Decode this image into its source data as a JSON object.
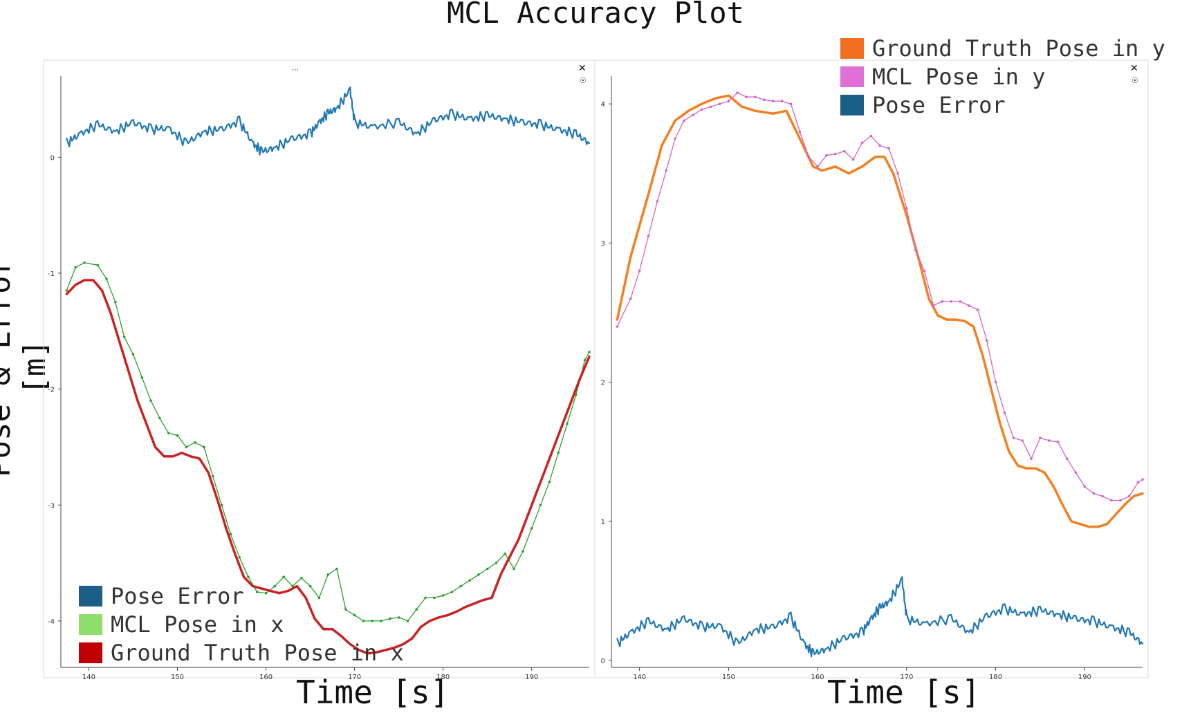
{
  "title": "MCL Accuracy Plot",
  "ylabel": "Pose & Error [m]",
  "colors": {
    "pose_error": "#1f77b4",
    "pose_error_legend": "#1b5f86",
    "mcl_x": "#2ca02c",
    "mcl_x_legend": "#8ede6e",
    "gt_x": "#c92222",
    "gt_x_legend": "#c00000",
    "gt_y": "#f57f20",
    "gt_y_legend": "#f07020",
    "mcl_y": "#d463c8",
    "mcl_y_legend": "#e070d8"
  },
  "icons": {
    "close": "close-icon",
    "settings": "gear-icon",
    "menu": "ellipsis-icon"
  },
  "chart_data": [
    {
      "type": "line",
      "xlabel": "Time [s]",
      "xlim": [
        137,
        196.5
      ],
      "ylim": [
        -4.4,
        0.7
      ],
      "xticks": [
        140,
        150,
        160,
        170,
        180,
        190
      ],
      "yticks": [
        0,
        -1,
        -2,
        -3,
        -4
      ],
      "legend_position": "bottom-left",
      "legend": [
        {
          "label": "Pose Error",
          "color_key": "pose_error_legend"
        },
        {
          "label": "MCL Pose in x",
          "color_key": "mcl_x_legend"
        },
        {
          "label": "Ground Truth Pose in x",
          "color_key": "gt_x_legend"
        }
      ],
      "series": [
        {
          "name": "Pose Error",
          "color_key": "pose_error",
          "style": "jagged",
          "x": [
            137.5,
            139,
            141,
            143,
            145,
            147,
            149,
            151,
            153,
            155,
            157,
            158.5,
            159.5,
            161,
            163,
            165,
            166,
            167,
            168,
            169.5,
            170,
            172,
            175,
            177,
            179,
            181,
            183,
            185,
            187,
            189,
            191,
            193,
            195,
            196.5
          ],
          "y": [
            0.12,
            0.2,
            0.28,
            0.22,
            0.3,
            0.24,
            0.25,
            0.12,
            0.22,
            0.24,
            0.31,
            0.12,
            0.05,
            0.08,
            0.16,
            0.2,
            0.3,
            0.38,
            0.42,
            0.58,
            0.3,
            0.26,
            0.3,
            0.2,
            0.32,
            0.37,
            0.33,
            0.36,
            0.33,
            0.3,
            0.28,
            0.24,
            0.2,
            0.12
          ]
        },
        {
          "name": "MCL Pose in x",
          "color_key": "mcl_x",
          "style": "dotted",
          "x": [
            137.5,
            138.5,
            139.5,
            141,
            142,
            143,
            144,
            145,
            146,
            147,
            148,
            149,
            150,
            151,
            152,
            153,
            154,
            155,
            156,
            157,
            158,
            159,
            160,
            161,
            162,
            163,
            164,
            165,
            166,
            167,
            168,
            169,
            170,
            171,
            172,
            173,
            174,
            175,
            176,
            177,
            178,
            179,
            180,
            181,
            182,
            183,
            184,
            185,
            186,
            187,
            188,
            189,
            190,
            191,
            192,
            193,
            194,
            195,
            196,
            196.5
          ],
          "y": [
            -1.15,
            -0.95,
            -0.91,
            -0.93,
            -1.05,
            -1.25,
            -1.55,
            -1.7,
            -1.9,
            -2.1,
            -2.25,
            -2.38,
            -2.4,
            -2.5,
            -2.46,
            -2.5,
            -2.75,
            -3.0,
            -3.25,
            -3.45,
            -3.62,
            -3.75,
            -3.76,
            -3.7,
            -3.62,
            -3.7,
            -3.63,
            -3.7,
            -3.8,
            -3.6,
            -3.55,
            -3.9,
            -3.95,
            -4.0,
            -4.0,
            -4.0,
            -3.98,
            -3.97,
            -4.0,
            -3.9,
            -3.8,
            -3.8,
            -3.78,
            -3.75,
            -3.7,
            -3.65,
            -3.6,
            -3.55,
            -3.5,
            -3.42,
            -3.55,
            -3.4,
            -3.2,
            -3.0,
            -2.8,
            -2.55,
            -2.3,
            -2.05,
            -1.75,
            -1.68
          ]
        },
        {
          "name": "Ground Truth Pose in x",
          "color_key": "gt_x",
          "style": "thick",
          "x": [
            137.5,
            138.5,
            139.5,
            140.5,
            141.5,
            142.5,
            143.5,
            144.5,
            145.5,
            146.5,
            147.5,
            148.5,
            149.5,
            150.5,
            151.5,
            152.5,
            153.5,
            154.5,
            155.5,
            156.5,
            157.5,
            158.5,
            159.5,
            160.5,
            161.5,
            162.5,
            163.5,
            164.5,
            165.5,
            166.5,
            167.5,
            168.5,
            169.5,
            170.5,
            171.5,
            172.5,
            173.5,
            174.5,
            175.5,
            176.5,
            177.5,
            178.5,
            179.5,
            180.5,
            181.5,
            182.5,
            183.5,
            184.5,
            185.5,
            186.5,
            187.5,
            188.5,
            189.5,
            190.5,
            191.5,
            192.5,
            193.5,
            194.5,
            195.5,
            196.5
          ],
          "y": [
            -1.18,
            -1.1,
            -1.06,
            -1.06,
            -1.15,
            -1.35,
            -1.6,
            -1.85,
            -2.1,
            -2.3,
            -2.5,
            -2.58,
            -2.58,
            -2.55,
            -2.58,
            -2.6,
            -2.72,
            -2.95,
            -3.2,
            -3.42,
            -3.62,
            -3.7,
            -3.72,
            -3.74,
            -3.76,
            -3.74,
            -3.7,
            -3.8,
            -3.98,
            -4.07,
            -4.07,
            -4.13,
            -4.2,
            -4.25,
            -4.28,
            -4.27,
            -4.25,
            -4.23,
            -4.2,
            -4.15,
            -4.05,
            -4.0,
            -3.97,
            -3.95,
            -3.92,
            -3.88,
            -3.85,
            -3.82,
            -3.8,
            -3.6,
            -3.45,
            -3.3,
            -3.1,
            -2.9,
            -2.7,
            -2.5,
            -2.3,
            -2.1,
            -1.9,
            -1.72
          ]
        }
      ]
    },
    {
      "type": "line",
      "xlabel": "Time [s]",
      "xlim": [
        137,
        196.5
      ],
      "ylim": [
        -0.05,
        4.2
      ],
      "xticks": [
        140,
        150,
        160,
        170,
        180,
        190
      ],
      "yticks": [
        0,
        1,
        2,
        3,
        4
      ],
      "legend_position": "top-right",
      "legend": [
        {
          "label": "Ground Truth Pose in y",
          "color_key": "gt_y_legend"
        },
        {
          "label": "MCL Pose in y",
          "color_key": "mcl_y_legend"
        },
        {
          "label": "Pose Error",
          "color_key": "pose_error_legend"
        }
      ],
      "series": [
        {
          "name": "Ground Truth Pose in y",
          "color_key": "gt_y",
          "style": "thick",
          "x": [
            137.5,
            139,
            141,
            142.5,
            144,
            145.5,
            147,
            148.5,
            150,
            151.5,
            153,
            155,
            156.5,
            158,
            159.5,
            160.5,
            162,
            163.5,
            165,
            166.5,
            167.5,
            168.5,
            170,
            171.5,
            172.5,
            173.5,
            174.5,
            175.5,
            176.5,
            177.5,
            178.5,
            179.5,
            180.5,
            181.5,
            182.5,
            183.5,
            184.5,
            185.5,
            186.5,
            187.5,
            188.5,
            189.5,
            190.5,
            191.5,
            192.5,
            193.5,
            194.5,
            195.5,
            196.5
          ],
          "y": [
            2.45,
            2.9,
            3.35,
            3.7,
            3.88,
            3.95,
            4.0,
            4.04,
            4.06,
            3.98,
            3.95,
            3.93,
            3.95,
            3.75,
            3.55,
            3.52,
            3.55,
            3.5,
            3.55,
            3.62,
            3.62,
            3.5,
            3.2,
            2.85,
            2.6,
            2.48,
            2.45,
            2.45,
            2.44,
            2.4,
            2.2,
            1.95,
            1.7,
            1.5,
            1.4,
            1.38,
            1.38,
            1.35,
            1.25,
            1.12,
            1.0,
            0.98,
            0.96,
            0.96,
            0.98,
            1.05,
            1.12,
            1.18,
            1.2
          ]
        },
        {
          "name": "MCL Pose in y",
          "color_key": "mcl_y",
          "style": "dotted",
          "x": [
            137.5,
            139,
            140,
            141,
            142,
            143,
            144,
            145,
            146,
            147,
            148,
            149,
            150,
            151,
            152,
            153,
            154,
            155,
            156,
            157,
            158,
            159,
            160,
            161,
            162,
            163,
            164,
            165,
            166,
            167,
            168,
            169,
            170,
            171,
            172,
            173,
            174,
            175,
            176,
            177,
            178,
            179,
            180,
            181,
            182,
            183,
            184,
            185,
            186,
            187,
            188,
            189,
            190,
            191,
            192,
            193,
            194,
            195,
            196,
            196.5
          ],
          "y": [
            2.4,
            2.6,
            2.8,
            3.05,
            3.3,
            3.52,
            3.75,
            3.88,
            3.92,
            3.96,
            3.98,
            4.0,
            4.02,
            4.08,
            4.05,
            4.05,
            4.03,
            4.02,
            4.02,
            4.0,
            3.8,
            3.62,
            3.55,
            3.63,
            3.64,
            3.66,
            3.6,
            3.72,
            3.77,
            3.7,
            3.68,
            3.5,
            3.25,
            2.95,
            2.8,
            2.55,
            2.58,
            2.58,
            2.58,
            2.55,
            2.52,
            2.3,
            2.0,
            1.78,
            1.6,
            1.58,
            1.45,
            1.6,
            1.58,
            1.57,
            1.45,
            1.35,
            1.25,
            1.2,
            1.18,
            1.15,
            1.15,
            1.18,
            1.28,
            1.3
          ]
        },
        {
          "name": "Pose Error",
          "color_key": "pose_error",
          "style": "jagged",
          "x": [
            137.5,
            139,
            141,
            143,
            145,
            147,
            149,
            151,
            153,
            155,
            157,
            158.5,
            159.5,
            161,
            163,
            165,
            166,
            167,
            168,
            169.5,
            170,
            172,
            175,
            177,
            179,
            181,
            183,
            185,
            187,
            189,
            191,
            193,
            195,
            196.5
          ],
          "y": [
            0.12,
            0.2,
            0.28,
            0.22,
            0.3,
            0.24,
            0.25,
            0.12,
            0.22,
            0.24,
            0.31,
            0.12,
            0.05,
            0.08,
            0.16,
            0.2,
            0.3,
            0.38,
            0.42,
            0.58,
            0.3,
            0.26,
            0.3,
            0.2,
            0.32,
            0.37,
            0.33,
            0.36,
            0.33,
            0.3,
            0.28,
            0.24,
            0.2,
            0.12
          ]
        }
      ]
    }
  ]
}
